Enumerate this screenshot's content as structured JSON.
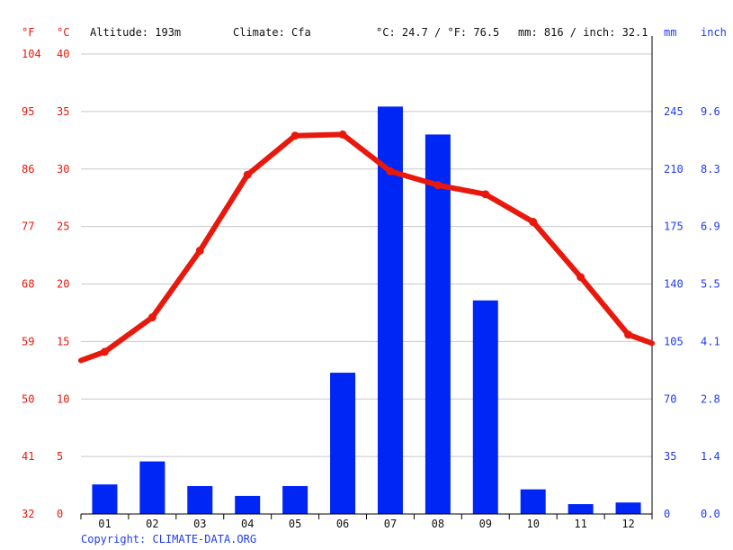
{
  "header": {
    "unit_f": "°F",
    "unit_c": "°C",
    "altitude": "Altitude: 193m",
    "climate": "Climate: Cfa",
    "avg_temp": "°C: 24.7 / °F: 76.5",
    "precip_total": "mm: 816 / inch: 32.1",
    "unit_mm": "mm",
    "unit_inch": "inch"
  },
  "copyright": "Copyright: CLIMATE-DATA.ORG",
  "colors": {
    "temperature": "#e8190c",
    "precipitation": "#0026f5",
    "axis_left": "#e8190c",
    "axis_right": "#1f3cf0"
  },
  "chart_data": {
    "type": "bar",
    "categories": [
      "01",
      "02",
      "03",
      "04",
      "05",
      "06",
      "07",
      "08",
      "09",
      "10",
      "11",
      "12"
    ],
    "series": [
      {
        "kind": "bar",
        "axis": "right",
        "values": [
          18,
          32,
          17,
          11,
          17,
          86,
          248,
          231,
          130,
          15,
          6,
          7
        ]
      },
      {
        "kind": "line",
        "axis": "left",
        "values": [
          14.1,
          17.1,
          22.9,
          29.5,
          32.9,
          33.0,
          29.8,
          28.6,
          27.8,
          25.4,
          20.6,
          15.6
        ]
      }
    ],
    "y_left_celsius": {
      "ticks": [
        "0",
        "5",
        "10",
        "15",
        "20",
        "25",
        "30",
        "35",
        "40"
      ],
      "ylim": [
        0,
        40
      ]
    },
    "y_left_fahrenheit": {
      "ticks": [
        "32",
        "41",
        "50",
        "59",
        "68",
        "77",
        "86",
        "95",
        "104"
      ]
    },
    "y_right_mm": {
      "ticks": [
        "0",
        "35",
        "70",
        "105",
        "140",
        "175",
        "210",
        "245"
      ],
      "ylim": [
        0,
        280
      ]
    },
    "y_right_inch": {
      "ticks": [
        "0.0",
        "1.4",
        "2.8",
        "4.1",
        "5.5",
        "6.9",
        "8.3",
        "9.6"
      ]
    },
    "grid": true
  }
}
